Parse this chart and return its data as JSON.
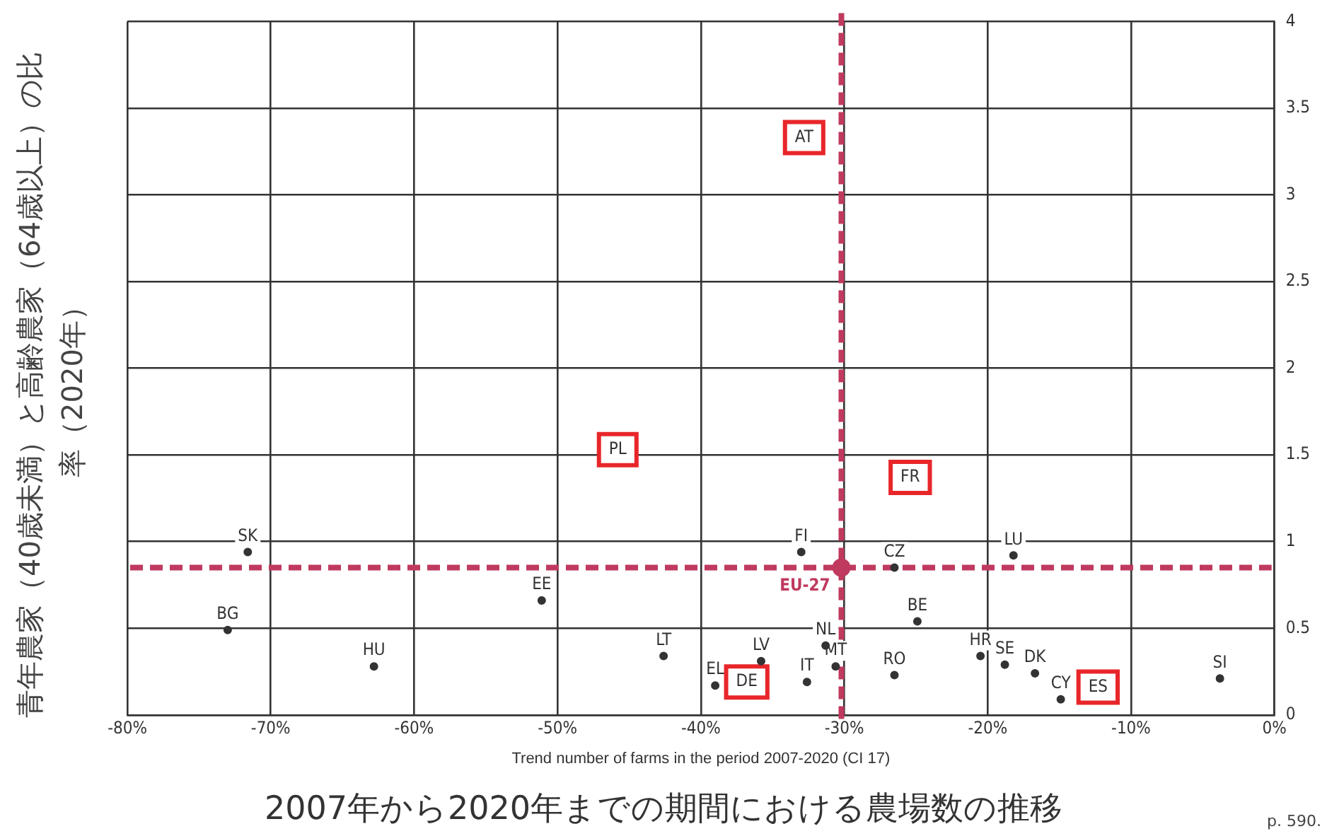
{
  "chart_data": {
    "type": "scatter",
    "xlabel": "Trend number of farms in the period 2007-2020 (CI 17)",
    "ylabel": "青年農家（40歳未満）と高齢農家（64歳以上）の比率（2020年）",
    "annotations": [
      "2007年から2020年までの期間における農場数の推移",
      "p. 590."
    ],
    "xlim": [
      -80,
      0
    ],
    "xticks": [
      {
        "value": -80,
        "label": "-80%"
      },
      {
        "value": -70,
        "label": "-70%"
      },
      {
        "value": -60,
        "label": "-60%"
      },
      {
        "value": -50,
        "label": "-50%"
      },
      {
        "value": -40,
        "label": "-40%"
      },
      {
        "value": -30,
        "label": "-30%"
      },
      {
        "value": -20,
        "label": "-20%"
      },
      {
        "value": -10,
        "label": "-10%"
      },
      {
        "value": 0,
        "label": "0%"
      }
    ],
    "ylim": [
      0,
      4
    ],
    "yticks": [
      0,
      0.5,
      1,
      1.5,
      2,
      2.5,
      3,
      3.5,
      4
    ],
    "grid": true,
    "legend": false,
    "marker": "circle",
    "series": [
      {
        "color": "#333333",
        "x": [
          -71.6,
          -33.0,
          -18.2,
          -26.5,
          -51.1,
          -24.9,
          -73.0,
          -31.3,
          -20.5,
          -42.6,
          -62.8,
          -18.8,
          -35.8,
          -30.6,
          -16.7,
          -26.5,
          -3.8,
          -32.6,
          -39.0,
          -14.9
        ],
        "values": [
          0.94,
          0.94,
          0.92,
          0.85,
          0.66,
          0.54,
          0.49,
          0.4,
          0.34,
          0.34,
          0.28,
          0.29,
          0.31,
          0.28,
          0.24,
          0.23,
          0.21,
          0.19,
          0.17,
          0.09
        ],
        "value_labels": [
          "SK",
          "FI",
          "LU",
          "CZ",
          "EE",
          "BE",
          "BG",
          "NL",
          "HR",
          "LT",
          "HU",
          "SE",
          "LV",
          "MT",
          "DK",
          "RO",
          "SI",
          "IT",
          "EL",
          "CY"
        ]
      },
      {
        "color": "#e8262a",
        "marker": "square",
        "x": [
          -32.8,
          -45.8,
          -25.4,
          -36.8,
          -12.3
        ],
        "values": [
          3.33,
          1.53,
          1.37,
          0.19,
          0.16
        ],
        "value_labels": [
          "AT",
          "PL",
          "FR",
          "DE",
          "ES"
        ]
      },
      {
        "color": "#c0395e",
        "marker": "circle",
        "x": [
          -30.2
        ],
        "values": [
          0.85
        ],
        "value_labels": [
          "EU-27"
        ]
      }
    ],
    "ref_lines": [
      {
        "axis": "x",
        "value": -30.2,
        "color": "#c0395e",
        "line_style": "dashed"
      },
      {
        "axis": "y",
        "value": 0.85,
        "color": "#c0395e",
        "line_style": "dashed"
      }
    ]
  }
}
